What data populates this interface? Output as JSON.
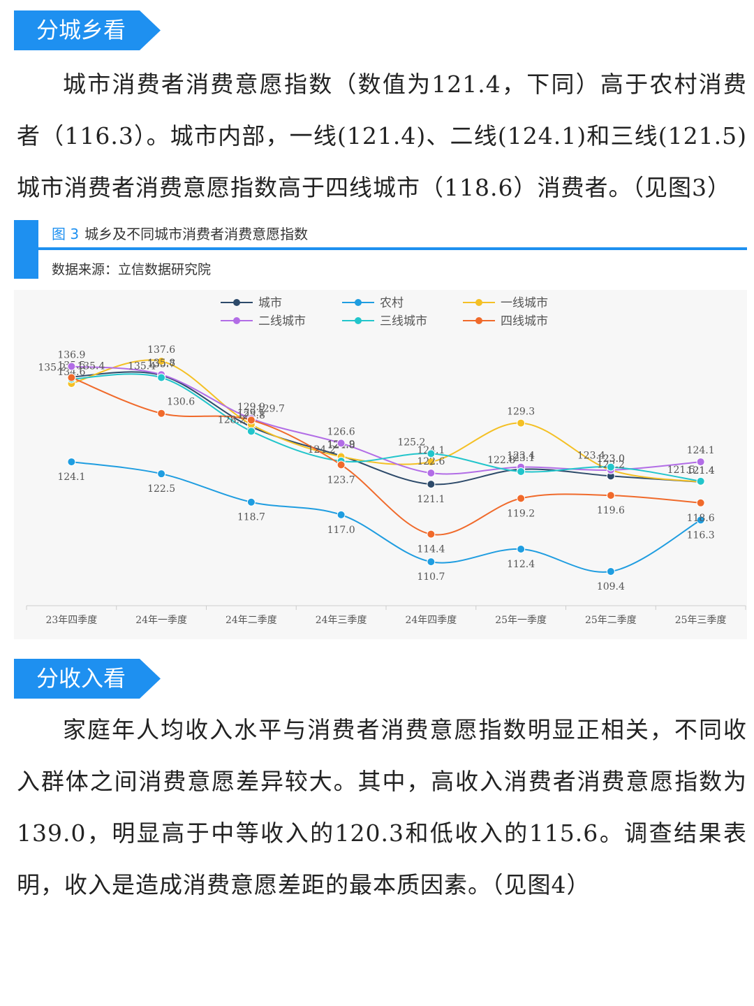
{
  "sections": [
    {
      "heading": "分城乡看",
      "paragraph": "城市消费者消费意愿指数（数值为121.4，下同）高于农村消费者（116.3）。城市内部，一线(121.4)、二线(124.1)和三线(121.5)城市消费者消费意愿指数高于四线城市（118.6）消费者。（见图3）"
    },
    {
      "heading": "分收入看",
      "paragraph": "家庭年人均收入水平与消费者消费意愿指数明显正相关，不同收入群体之间消费意愿差异较大。其中，高收入消费者消费意愿指数为139.0，明显高于中等收入的120.3和低收入的115.6。调查结果表明，收入是造成消费意愿差距的最本质因素。（见图4）"
    }
  ],
  "figure": {
    "number": "图 3",
    "caption": "城乡及不同城市消费者消费意愿指数",
    "source": "数据来源：立信数据研究院"
  },
  "chart_data": {
    "type": "line",
    "smooth": true,
    "markers": true,
    "legend": "top",
    "categories": [
      "23年四季度",
      "24年一季度",
      "24年二季度",
      "24年三季度",
      "24年四季度",
      "25年一季度",
      "25年二季度",
      "25年三季度"
    ],
    "series": [
      {
        "name": "城市",
        "color": "#2d4a6a",
        "values": [
          135.5,
          135.7,
          128.8,
          124.9,
          121.1,
          123.1,
          122.2,
          121.4
        ],
        "value_labels": [
          "135.5",
          "135.7",
          "128.8",
          "124.9",
          "121.1",
          "123.1",
          "122.2",
          "121.4"
        ]
      },
      {
        "name": "农村",
        "color": "#1f9de0",
        "values": [
          124.1,
          122.5,
          118.7,
          117,
          110.7,
          112.4,
          109.4,
          116.3
        ],
        "value_labels": [
          "124.1",
          "122.5",
          "118.7",
          "117.0",
          "110.7",
          "112.4",
          "109.4",
          "116.3"
        ]
      },
      {
        "name": "一线城市",
        "color": "#f4c025",
        "values": [
          134.6,
          137.6,
          129.1,
          124.8,
          124.1,
          129.3,
          123,
          121.4
        ],
        "value_labels": [
          "134.6",
          "137.6",
          "129.1",
          "124.8",
          "124.1",
          "129.3",
          "123.0",
          "121.4"
        ]
      },
      {
        "name": "二线城市",
        "color": "#b26de6",
        "values": [
          136.9,
          135.8,
          129.9,
          126.6,
          122.6,
          123.4,
          123,
          124.1
        ],
        "value_labels": [
          "136.9",
          "135.8",
          "129.9",
          "126.6",
          "122.6",
          "123.4",
          "123.0",
          "124.1"
        ]
      },
      {
        "name": "三线城市",
        "color": "#22c5cb",
        "values": [
          135.2,
          135.4,
          128.2,
          124.2,
          125.2,
          122.8,
          123.4,
          121.5
        ],
        "value_labels": [
          "135.2",
          "135.4",
          "128.2",
          "124.2",
          "125.2",
          "122.8",
          "123.4",
          "121.5"
        ]
      },
      {
        "name": "四线城市",
        "color": "#f06a2b",
        "values": [
          135.4,
          130.6,
          129.7,
          123.7,
          114.4,
          119.2,
          119.6,
          118.6
        ],
        "value_labels": [
          "135.4",
          "130.6",
          "129.7",
          "123.7",
          "114.4",
          "119.2",
          "119.6",
          "118.6"
        ]
      }
    ]
  }
}
